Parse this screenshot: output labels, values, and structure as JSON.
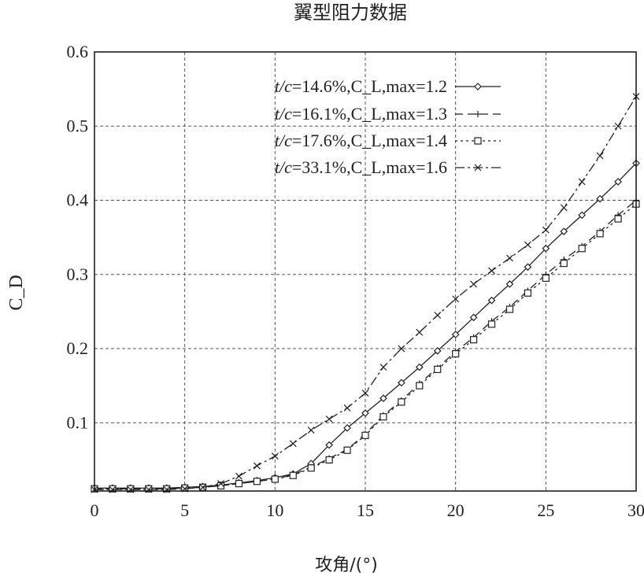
{
  "chart_data": {
    "type": "line",
    "title": "翼型阻力数据",
    "xlabel": "攻角/(°)",
    "ylabel": "C_D",
    "xlim": [
      0,
      30
    ],
    "ylim": [
      0.008,
      0.6
    ],
    "xticks": [
      "0",
      "5",
      "10",
      "15",
      "20",
      "25",
      "30"
    ],
    "yticks": [
      "0.1",
      "0.2",
      "0.3",
      "0.4",
      "0.5",
      "0.6"
    ],
    "grid": true,
    "legend_position": "top-center",
    "x": [
      0,
      1,
      2,
      3,
      4,
      5,
      6,
      7,
      8,
      9,
      10,
      11,
      12,
      13,
      14,
      15,
      16,
      17,
      18,
      19,
      20,
      21,
      22,
      23,
      24,
      25,
      26,
      27,
      28,
      29,
      30
    ],
    "series": [
      {
        "name_prefix": "t/c",
        "name_suffix": "=14.6%,C_L,max=1.2",
        "marker": "diamond",
        "dash": "",
        "values": [
          0.012,
          0.012,
          0.012,
          0.012,
          0.012,
          0.013,
          0.014,
          0.016,
          0.019,
          0.022,
          0.026,
          0.031,
          0.045,
          0.07,
          0.093,
          0.113,
          0.133,
          0.154,
          0.175,
          0.197,
          0.219,
          0.242,
          0.265,
          0.287,
          0.31,
          0.335,
          0.358,
          0.38,
          0.402,
          0.425,
          0.45
        ]
      },
      {
        "name_prefix": "t/c",
        "name_suffix": "=16.1%,C_L,max=1.3",
        "marker": "plus",
        "dash": "10,6",
        "values": [
          0.011,
          0.011,
          0.011,
          0.011,
          0.011,
          0.012,
          0.013,
          0.015,
          0.018,
          0.021,
          0.024,
          0.03,
          0.04,
          0.052,
          0.064,
          0.085,
          0.11,
          0.13,
          0.153,
          0.174,
          0.196,
          0.215,
          0.237,
          0.256,
          0.278,
          0.3,
          0.32,
          0.338,
          0.358,
          0.38,
          0.4
        ]
      },
      {
        "name_prefix": "t/c",
        "name_suffix": "=17.6%,C_L,max=1.4",
        "marker": "square",
        "dash": "3,4",
        "values": [
          0.011,
          0.011,
          0.011,
          0.011,
          0.011,
          0.012,
          0.013,
          0.015,
          0.018,
          0.021,
          0.024,
          0.029,
          0.039,
          0.05,
          0.063,
          0.083,
          0.108,
          0.128,
          0.15,
          0.172,
          0.193,
          0.212,
          0.233,
          0.253,
          0.275,
          0.295,
          0.315,
          0.335,
          0.355,
          0.375,
          0.395
        ]
      },
      {
        "name_prefix": "t/c",
        "name_suffix": "=33.1%,C_L,max=1.6",
        "marker": "cross",
        "dash": "12,4,3,4",
        "values": [
          0.01,
          0.01,
          0.01,
          0.01,
          0.01,
          0.011,
          0.013,
          0.018,
          0.028,
          0.042,
          0.055,
          0.072,
          0.09,
          0.105,
          0.12,
          0.14,
          0.175,
          0.2,
          0.222,
          0.245,
          0.267,
          0.287,
          0.305,
          0.322,
          0.34,
          0.36,
          0.39,
          0.425,
          0.46,
          0.5,
          0.54
        ]
      }
    ]
  }
}
